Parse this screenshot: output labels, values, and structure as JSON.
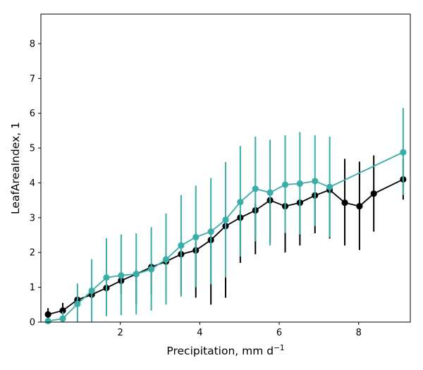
{
  "chart_data": {
    "type": "line",
    "title": "",
    "xlabel": "Precipitation,  mm d",
    "xlabel_sup": "−1",
    "ylabel": "LeafAreaIndex,  1",
    "xlim": [
      0,
      9.3
    ],
    "ylim": [
      0,
      8.85
    ],
    "xticks": [
      2,
      4,
      6,
      8
    ],
    "yticks": [
      0,
      1,
      2,
      3,
      4,
      5,
      6,
      7,
      8
    ],
    "grid": false,
    "legend": "none",
    "series": [
      {
        "color": "#000000",
        "x": [
          0.18,
          0.55,
          0.92,
          1.28,
          1.65,
          2.02,
          2.4,
          2.78,
          3.15,
          3.53,
          3.9,
          4.28,
          4.65,
          5.02,
          5.4,
          5.77,
          6.15,
          6.52,
          6.9,
          7.27,
          7.65,
          8.02,
          8.38,
          9.12
        ],
        "y": [
          0.22,
          0.33,
          0.64,
          0.79,
          0.98,
          1.19,
          1.38,
          1.58,
          1.74,
          1.95,
          2.06,
          2.36,
          2.76,
          3.0,
          3.21,
          3.5,
          3.33,
          3.43,
          3.64,
          3.8,
          3.43,
          3.33,
          3.69,
          4.1
        ],
        "err_low": [
          0.0,
          0.1,
          0.6,
          0.7,
          0.8,
          0.8,
          0.5,
          0.8,
          0.7,
          0.8,
          0.7,
          0.5,
          0.7,
          1.7,
          1.95,
          2.3,
          2.0,
          2.2,
          2.55,
          2.4,
          2.2,
          2.07,
          2.6,
          3.52
        ],
        "err_high": [
          0.4,
          0.55,
          0.7,
          0.9,
          1.1,
          1.3,
          1.5,
          1.7,
          1.9,
          2.1,
          2.3,
          2.6,
          2.9,
          3.2,
          3.4,
          3.6,
          3.5,
          3.5,
          3.7,
          3.9,
          4.69,
          4.61,
          4.79,
          4.7
        ]
      },
      {
        "color": "#3aada8",
        "x": [
          0.18,
          0.55,
          0.92,
          1.28,
          1.65,
          2.02,
          2.4,
          2.78,
          3.15,
          3.53,
          3.9,
          4.28,
          4.65,
          5.02,
          5.4,
          5.77,
          6.15,
          6.52,
          6.9,
          7.27,
          9.12
        ],
        "y": [
          0.03,
          0.1,
          0.52,
          0.9,
          1.28,
          1.34,
          1.38,
          1.52,
          1.8,
          2.2,
          2.44,
          2.6,
          2.94,
          3.45,
          3.83,
          3.72,
          3.95,
          3.98,
          4.05,
          3.88,
          4.88
        ],
        "err_low": [
          0.0,
          0.0,
          0.0,
          0.0,
          0.17,
          0.2,
          0.22,
          0.33,
          0.5,
          0.73,
          1.0,
          1.08,
          1.28,
          1.88,
          2.32,
          2.2,
          2.56,
          2.52,
          2.76,
          2.43,
          3.65
        ],
        "err_high": [
          0.1,
          0.3,
          1.11,
          1.81,
          2.41,
          2.52,
          2.55,
          2.73,
          3.12,
          3.65,
          3.92,
          4.14,
          4.6,
          5.06,
          5.33,
          5.24,
          5.37,
          5.46,
          5.37,
          5.33,
          6.15
        ]
      }
    ]
  }
}
